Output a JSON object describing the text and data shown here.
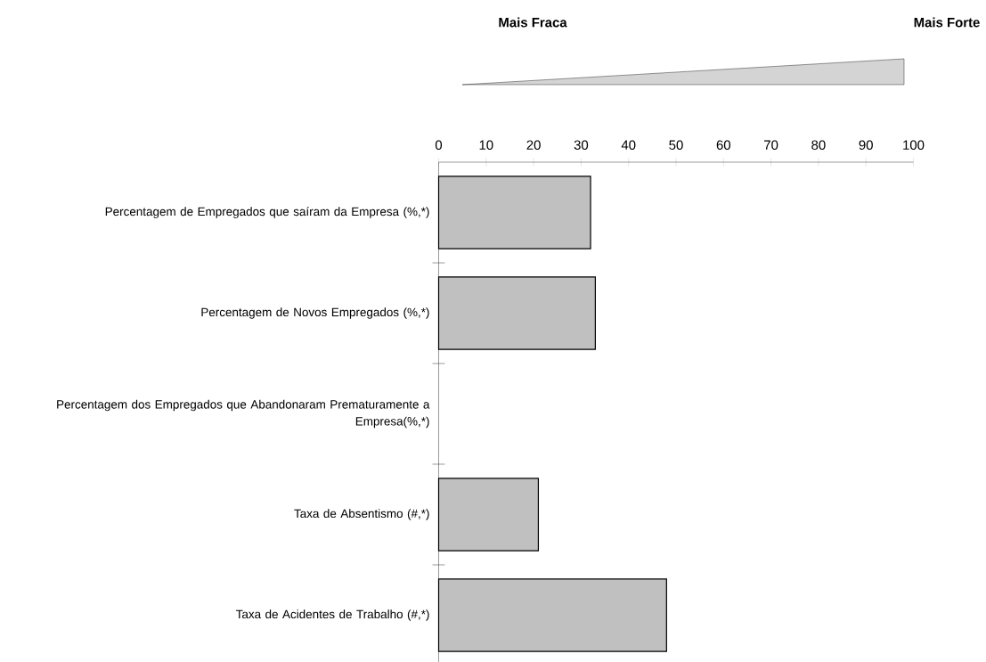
{
  "chart_data": {
    "type": "bar",
    "orientation": "horizontal",
    "categories": [
      "Percentagem de Empregados que saíram da Empresa (%,*)",
      "Percentagem de Novos Empregados (%,*)",
      "Percentagem dos Empregados que Abandonaram Prematuramente a Empresa(%,*)",
      "Taxa de Absentismo (#,*)",
      "Taxa de Acidentes de Trabalho (#,*)"
    ],
    "values": [
      32,
      33,
      null,
      21,
      48
    ],
    "color": "#c0c0c0",
    "xlim": [
      0,
      100
    ],
    "xticks": [
      0,
      10,
      20,
      30,
      40,
      50,
      60,
      70,
      80,
      90,
      100
    ],
    "grid": false,
    "annotations": [
      "Mais Fraca",
      "Mais Forte"
    ]
  }
}
